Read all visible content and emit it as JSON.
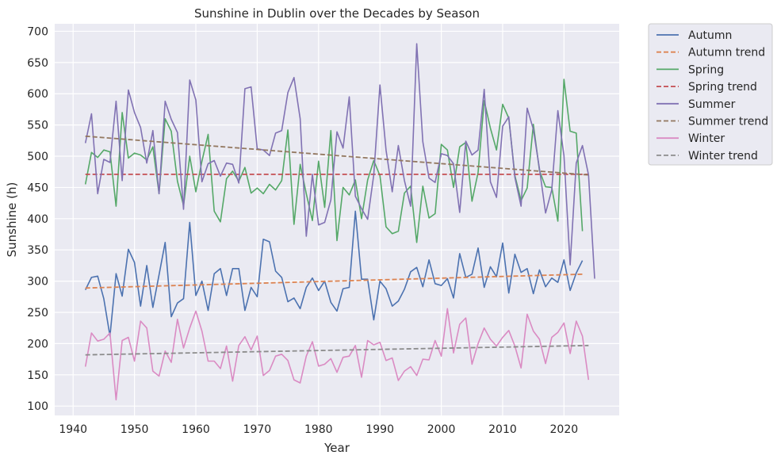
{
  "chart_data": {
    "type": "line",
    "title": "Sunshine in Dublin over the Decades by Season",
    "xlabel": "Year",
    "ylabel": "Sunshine (h)",
    "xlim": [
      1937,
      2029
    ],
    "ylim": [
      85,
      712
    ],
    "xticks": [
      1940,
      1950,
      1960,
      1970,
      1980,
      1990,
      2000,
      2010,
      2020
    ],
    "yticks": [
      100,
      150,
      200,
      250,
      300,
      350,
      400,
      450,
      500,
      550,
      600,
      650,
      700
    ],
    "grid": true,
    "legend_position": "outside-top-right",
    "background": "#eaeaf2",
    "series": [
      {
        "name": "Autumn",
        "color": "#4c72b0",
        "style": "solid",
        "x_start": 1942,
        "values": [
          286,
          306,
          308,
          272,
          212,
          312,
          276,
          351,
          330,
          260,
          325,
          258,
          310,
          362,
          243,
          265,
          272,
          394,
          277,
          300,
          253,
          312,
          320,
          277,
          320,
          320,
          253,
          290,
          275,
          367,
          363,
          316,
          306,
          267,
          273,
          256,
          290,
          305,
          285,
          300,
          266,
          252,
          288,
          290,
          412,
          303,
          303,
          238,
          300,
          288,
          260,
          268,
          287,
          315,
          322,
          291,
          334,
          296,
          293,
          304,
          273,
          344,
          306,
          311,
          353,
          290,
          323,
          307,
          361,
          281,
          343,
          314,
          320,
          280,
          318,
          291,
          305,
          298,
          334,
          285,
          313,
          333
        ],
        "tooltip": "Autumn"
      },
      {
        "name": "Autumn trend",
        "color": "#dd8452",
        "style": "dashed",
        "x": [
          1942,
          2023
        ],
        "y": [
          289,
          311
        ]
      },
      {
        "name": "Spring",
        "color": "#55a868",
        "style": "solid",
        "x_start": 1942,
        "values": [
          455,
          506,
          498,
          510,
          507,
          420,
          570,
          497,
          505,
          502,
          494,
          515,
          440,
          560,
          540,
          460,
          421,
          500,
          443,
          492,
          535,
          412,
          395,
          464,
          476,
          460,
          482,
          441,
          449,
          440,
          455,
          446,
          461,
          542,
          391,
          487,
          440,
          397,
          492,
          418,
          541,
          365,
          450,
          438,
          462,
          400,
          462,
          493,
          469,
          387,
          376,
          380,
          441,
          452,
          362,
          452,
          401,
          408,
          519,
          510,
          450,
          515,
          522,
          428,
          474,
          589,
          545,
          510,
          583,
          561,
          469,
          429,
          449,
          551,
          477,
          451,
          450,
          396,
          623,
          540,
          537,
          380
        ],
        "tooltip": "Spring"
      },
      {
        "name": "Spring trend",
        "color": "#c44e52",
        "style": "dashed",
        "x": [
          1942,
          2024
        ],
        "y": [
          471,
          471
        ]
      },
      {
        "name": "Summer",
        "color": "#8172b3",
        "style": "solid",
        "x_start": 1942,
        "values": [
          521,
          568,
          440,
          495,
          490,
          588,
          461,
          606,
          570,
          546,
          489,
          541,
          440,
          588,
          559,
          538,
          415,
          622,
          590,
          459,
          488,
          493,
          468,
          489,
          487,
          457,
          608,
          611,
          512,
          510,
          501,
          537,
          541,
          602,
          626,
          560,
          372,
          471,
          390,
          394,
          430,
          539,
          513,
          595,
          436,
          416,
          399,
          470,
          614,
          510,
          443,
          517,
          461,
          420,
          680,
          523,
          465,
          458,
          504,
          501,
          488,
          410,
          524,
          502,
          510,
          607,
          459,
          434,
          548,
          563,
          466,
          420,
          577,
          543,
          480,
          409,
          446,
          573,
          501,
          326,
          489,
          517,
          470,
          304
        ],
        "tooltip": "Summer"
      },
      {
        "name": "Summer trend",
        "color": "#937860",
        "style": "dashed",
        "x": [
          1942,
          2024
        ],
        "y": [
          532,
          470
        ]
      },
      {
        "name": "Winter",
        "color": "#da8bc3",
        "style": "solid",
        "x_start": 1942,
        "values": [
          163,
          217,
          204,
          207,
          217,
          110,
          205,
          210,
          172,
          236,
          225,
          156,
          148,
          188,
          170,
          239,
          193,
          225,
          252,
          220,
          172,
          172,
          160,
          196,
          140,
          197,
          211,
          190,
          212,
          149,
          157,
          180,
          183,
          173,
          142,
          137,
          180,
          203,
          164,
          167,
          176,
          154,
          178,
          180,
          197,
          146,
          205,
          198,
          202,
          173,
          177,
          141,
          156,
          163,
          149,
          175,
          174,
          205,
          180,
          256,
          185,
          231,
          241,
          167,
          200,
          225,
          207,
          196,
          210,
          221,
          196,
          161,
          247,
          220,
          207,
          168,
          210,
          218,
          233,
          184,
          236,
          212,
          142
        ],
        "tooltip": "Winter"
      },
      {
        "name": "Winter trend",
        "color": "#8c8c8c",
        "style": "dashed",
        "x": [
          1942,
          2024
        ],
        "y": [
          182,
          197
        ]
      }
    ]
  }
}
